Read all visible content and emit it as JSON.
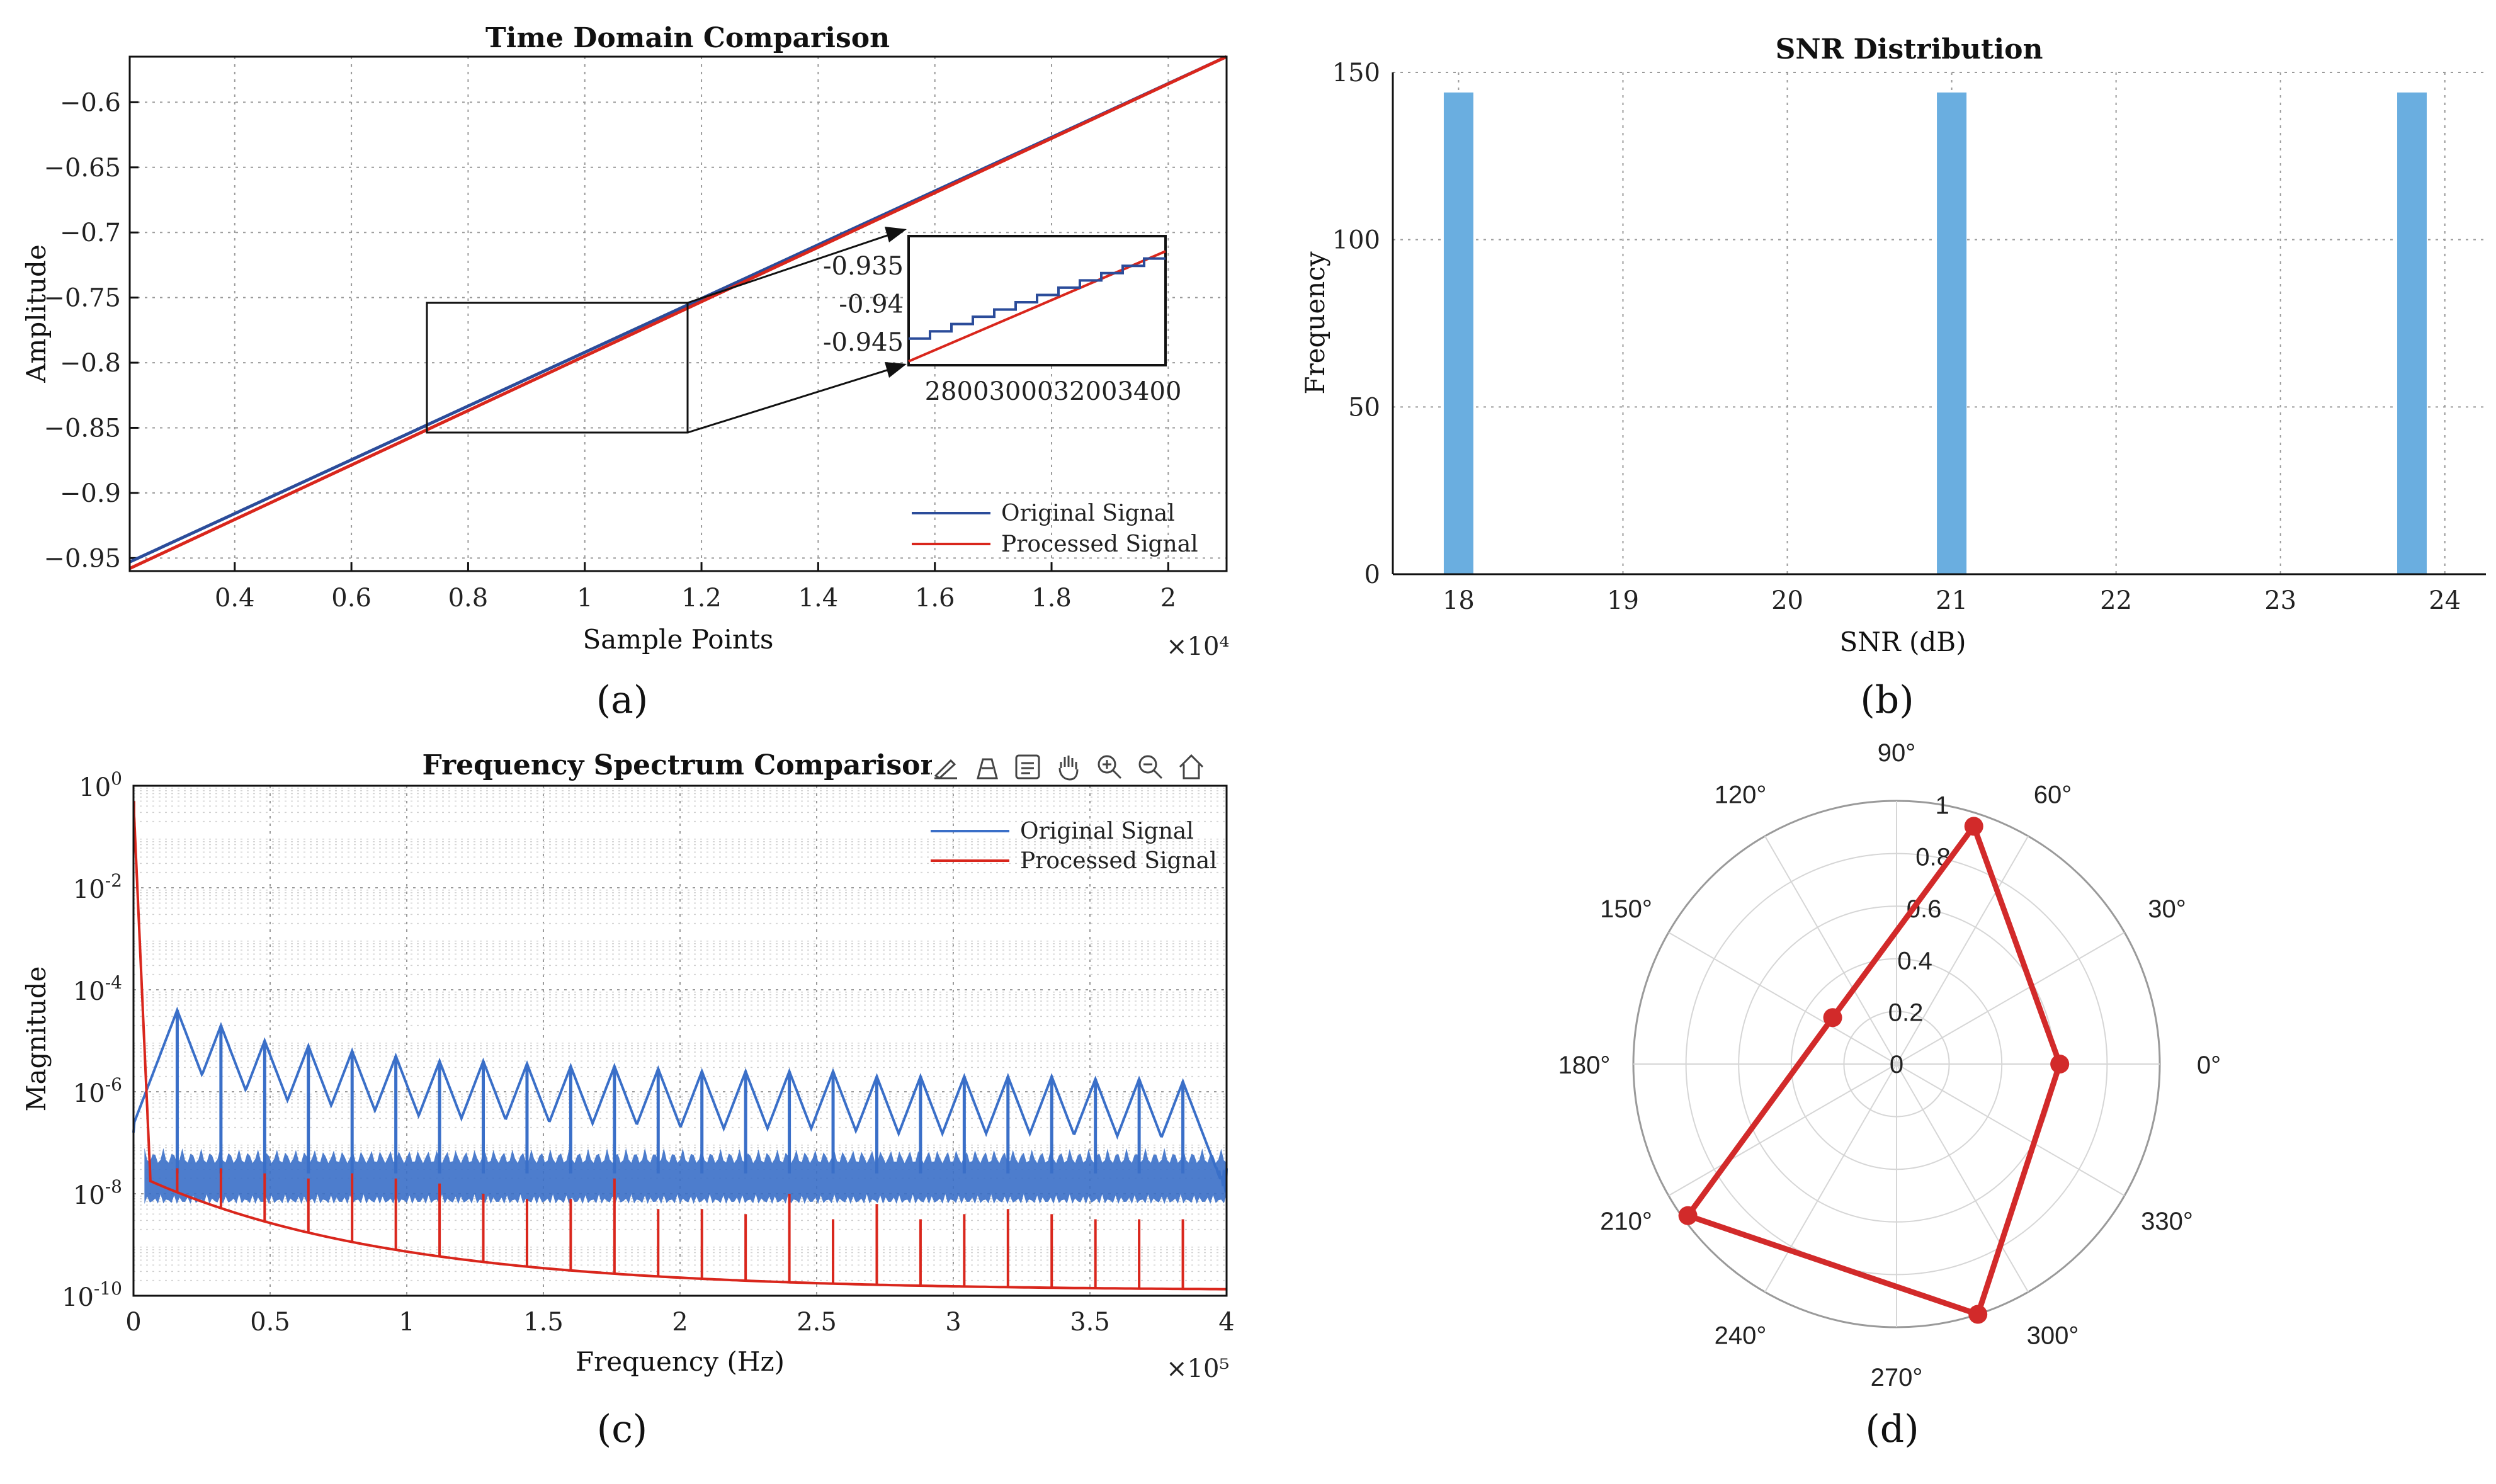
{
  "colors": {
    "blue": "#2b4c9a",
    "blue_spec": "#3a6fc8",
    "red": "#d9261c",
    "bar": "#6aaee0",
    "polar_red": "#d22a2a"
  },
  "chart_data": [
    {
      "id": "a",
      "type": "line",
      "panel_label": "(a)",
      "title": "Time Domain Comparison",
      "xlabel": "Sample Points",
      "ylabel": "Amplitude",
      "x_exponent": "×10⁴",
      "xlim": [
        0.22,
        2.1
      ],
      "ylim": [
        -0.96,
        -0.565
      ],
      "xticks": [
        0.4,
        0.6,
        0.8,
        1,
        1.2,
        1.4,
        1.6,
        1.8,
        2
      ],
      "xtick_labels": [
        "0.4",
        "0.6",
        "0.8",
        "1",
        "1.2",
        "1.4",
        "1.6",
        "1.8",
        "2"
      ],
      "yticks": [
        -0.95,
        -0.9,
        -0.85,
        -0.8,
        -0.75,
        -0.7,
        -0.65,
        -0.6
      ],
      "ytick_labels": [
        "−0.95",
        "−0.9",
        "−0.85",
        "−0.8",
        "−0.75",
        "−0.7",
        "−0.65",
        "−0.6"
      ],
      "series": [
        {
          "name": "Original Signal",
          "x": [
            0.22,
            2.1
          ],
          "y": [
            -0.953,
            -0.565
          ]
        },
        {
          "name": "Processed Signal",
          "x": [
            0.22,
            2.1
          ],
          "y": [
            -0.958,
            -0.565
          ]
        }
      ],
      "zoom_box": {
        "x": [
          0.75,
          1.22
        ],
        "y": [
          -0.85,
          -0.75
        ]
      },
      "inset": {
        "xlim": [
          2650,
          3450
        ],
        "ylim": [
          -0.948,
          -0.931
        ],
        "xticks": [
          2800,
          3000,
          3200,
          3400
        ],
        "xtick_labels": [
          "2800",
          "3000",
          "3200",
          "3400"
        ],
        "yticks": [
          -0.935,
          -0.94,
          -0.945
        ],
        "ytick_labels": [
          "-0.935",
          "-0.94",
          "-0.945"
        ],
        "original_steps": 12,
        "original_range": [
          -0.9445,
          -0.933
        ],
        "processed_range": [
          -0.9475,
          -0.933
        ]
      },
      "legend": [
        "Original Signal",
        "Processed Signal"
      ]
    },
    {
      "id": "b",
      "type": "bar",
      "panel_label": "(b)",
      "title": "SNR Distribution",
      "xlabel": "SNR (dB)",
      "ylabel": "Frequency",
      "xlim": [
        17.6,
        24.25
      ],
      "ylim": [
        0,
        150
      ],
      "xticks": [
        18,
        19,
        20,
        21,
        22,
        23,
        24
      ],
      "xtick_labels": [
        "18",
        "19",
        "20",
        "21",
        "22",
        "23",
        "24"
      ],
      "yticks": [
        0,
        50,
        100,
        150
      ],
      "ytick_labels": [
        "0",
        "50",
        "100",
        "150"
      ],
      "bars": [
        {
          "center": 18.0,
          "width": 0.18,
          "value": 144
        },
        {
          "center": 21.0,
          "width": 0.18,
          "value": 144
        },
        {
          "center": 23.8,
          "width": 0.18,
          "value": 144
        }
      ]
    },
    {
      "id": "c",
      "type": "line",
      "panel_label": "(c)",
      "title": "Frequency Spectrum Comparison",
      "xlabel": "Frequency (Hz)",
      "ylabel": "Magnitude",
      "x_exponent": "×10⁵",
      "yscale": "log",
      "xlim": [
        0,
        4
      ],
      "ylim_exp": [
        -10,
        0
      ],
      "xticks": [
        0,
        0.5,
        1,
        1.5,
        2,
        2.5,
        3,
        3.5,
        4
      ],
      "xtick_labels": [
        "0",
        "0.5",
        "1",
        "1.5",
        "2",
        "2.5",
        "3",
        "3.5",
        "4"
      ],
      "yticks_exp": [
        -10,
        -8,
        -6,
        -4,
        -2,
        0
      ],
      "ytick_base": "10",
      "ytick_exps": [
        "-10",
        "-8",
        "-6",
        "-4",
        "-2",
        "0"
      ],
      "original_peaks_x": [
        0.16,
        0.32,
        0.48,
        0.64,
        0.8,
        0.96,
        1.12,
        1.28,
        1.44,
        1.6,
        1.76,
        1.92,
        2.08,
        2.24,
        2.4,
        2.56,
        2.72,
        2.88,
        3.04,
        3.2,
        3.36,
        3.52,
        3.68,
        3.84
      ],
      "original_peaks_exp": [
        -4.4,
        -4.7,
        -5.0,
        -5.1,
        -5.2,
        -5.3,
        -5.4,
        -5.4,
        -5.45,
        -5.5,
        -5.5,
        -5.55,
        -5.6,
        -5.6,
        -5.6,
        -5.6,
        -5.7,
        -5.7,
        -5.7,
        -5.7,
        -5.7,
        -5.75,
        -5.75,
        -5.8
      ],
      "original_floor_exp": -7.8,
      "processed_peaks_x": [
        0.16,
        0.32,
        0.48,
        0.64,
        0.8,
        0.96,
        1.12,
        1.28,
        1.44,
        1.6,
        1.76,
        1.92,
        2.08,
        2.24,
        2.4,
        2.56,
        2.72,
        2.88,
        3.04,
        3.2,
        3.36,
        3.52,
        3.68,
        3.84
      ],
      "processed_peaks_exp": [
        -7.5,
        -7.5,
        -7.6,
        -7.7,
        -7.6,
        -7.7,
        -7.8,
        -8.0,
        -8.1,
        -8.1,
        -7.7,
        -8.3,
        -8.3,
        -8.4,
        -8.0,
        -8.5,
        -8.2,
        -8.5,
        -8.4,
        -8.3,
        -8.4,
        -8.5,
        -8.5,
        -8.5
      ],
      "legend": [
        "Original Signal",
        "Processed Signal"
      ],
      "toolbar_icons": [
        "brush-icon",
        "paint-icon",
        "datatip-icon",
        "pan-icon",
        "zoom-in-icon",
        "zoom-out-icon",
        "home-icon"
      ]
    },
    {
      "id": "d",
      "type": "polar",
      "panel_label": "(d)",
      "rlim": [
        0,
        1
      ],
      "rticks": [
        0,
        0.2,
        0.4,
        0.6,
        0.8,
        1
      ],
      "rtick_labels": [
        "0",
        "0.2",
        "0.4",
        "0.6",
        "0.8",
        "1"
      ],
      "theta_ticks": [
        0,
        30,
        60,
        90,
        120,
        150,
        180,
        210,
        240,
        270,
        300,
        330
      ],
      "theta_labels": [
        "0°",
        "30°",
        "60°",
        "90°",
        "120°",
        "150°",
        "180°",
        "210°",
        "240°",
        "270°",
        "300°",
        "330°"
      ],
      "points": [
        {
          "theta": 0,
          "r": 0.62
        },
        {
          "theta": 72,
          "r": 0.95
        },
        {
          "theta": 144,
          "r": 0.3
        },
        {
          "theta": 216,
          "r": 0.98
        },
        {
          "theta": 288,
          "r": 1.0
        }
      ]
    }
  ]
}
